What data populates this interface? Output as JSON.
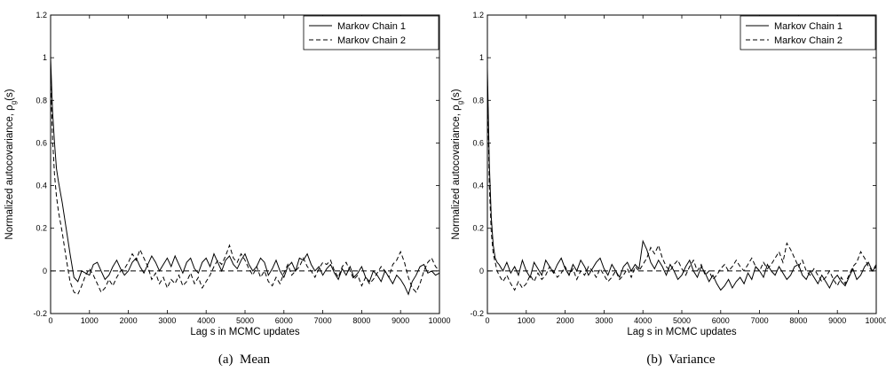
{
  "chart_data": [
    {
      "type": "line",
      "caption": "(a)  Mean",
      "xlabel": "Lag s in MCMC updates",
      "ylabel": "Normalized autocovariance, ρ",
      "ylabel_sub": "g",
      "ylabel_suffix": "(s)",
      "xlim": [
        0,
        10000
      ],
      "ylim": [
        -0.2,
        1.2
      ],
      "xticks": [
        0,
        1000,
        2000,
        3000,
        4000,
        5000,
        6000,
        7000,
        8000,
        9000,
        10000
      ],
      "yticks": [
        -0.2,
        0,
        0.2,
        0.4,
        0.6,
        0.8,
        1,
        1.2
      ],
      "xtick_labels": [
        "0",
        "1000",
        "2000",
        "3000",
        "4000",
        "5000",
        "6000",
        "7000",
        "8000",
        "9000",
        "10000"
      ],
      "ytick_labels": [
        "-0.2",
        "0",
        "0.2",
        "0.4",
        "0.6",
        "0.8",
        "1",
        "1.2"
      ],
      "legend": "top-right",
      "reference_line_y": 0,
      "series": [
        {
          "name": "Markov Chain 1",
          "style": "solid",
          "x": [
            0,
            50,
            100,
            150,
            200,
            300,
            400,
            500,
            600,
            700,
            800,
            900,
            1000,
            1100,
            1200,
            1300,
            1400,
            1500,
            1600,
            1700,
            1800,
            1900,
            2000,
            2100,
            2200,
            2300,
            2400,
            2500,
            2600,
            2700,
            2800,
            2900,
            3000,
            3100,
            3200,
            3300,
            3400,
            3500,
            3600,
            3700,
            3800,
            3900,
            4000,
            4100,
            4200,
            4300,
            4400,
            4500,
            4600,
            4700,
            4800,
            4900,
            5000,
            5100,
            5200,
            5300,
            5400,
            5500,
            5600,
            5700,
            5800,
            5900,
            6000,
            6100,
            6200,
            6300,
            6400,
            6500,
            6600,
            6700,
            6800,
            6900,
            7000,
            7100,
            7200,
            7300,
            7400,
            7500,
            7600,
            7700,
            7800,
            7900,
            8000,
            8100,
            8200,
            8300,
            8400,
            8500,
            8600,
            8700,
            8800,
            8900,
            9000,
            9100,
            9200,
            9300,
            9400,
            9500,
            9600,
            9700,
            9800,
            9900,
            10000
          ],
          "y": [
            1.0,
            0.75,
            0.6,
            0.48,
            0.42,
            0.32,
            0.2,
            0.08,
            -0.03,
            -0.05,
            0.0,
            -0.01,
            -0.02,
            0.03,
            0.04,
            0.0,
            -0.04,
            -0.02,
            0.02,
            0.05,
            0.01,
            -0.02,
            0.0,
            0.04,
            0.06,
            0.02,
            -0.01,
            0.03,
            0.07,
            0.04,
            0.0,
            0.03,
            0.06,
            0.02,
            0.07,
            0.03,
            -0.01,
            0.04,
            0.06,
            0.01,
            -0.01,
            0.04,
            0.06,
            0.02,
            0.08,
            0.04,
            0.0,
            0.05,
            0.07,
            0.03,
            0.01,
            0.05,
            0.08,
            0.03,
            0.0,
            0.02,
            0.06,
            0.04,
            -0.02,
            0.01,
            0.05,
            0.0,
            -0.03,
            0.02,
            0.04,
            0.0,
            0.06,
            0.05,
            0.08,
            0.03,
            0.0,
            0.02,
            -0.02,
            0.01,
            0.03,
            -0.01,
            -0.04,
            0.01,
            -0.02,
            0.02,
            -0.03,
            -0.01,
            0.02,
            -0.03,
            -0.05,
            0.0,
            -0.02,
            -0.05,
            0.0,
            -0.03,
            -0.06,
            -0.02,
            -0.04,
            -0.07,
            -0.11,
            -0.05,
            -0.02,
            0.02,
            0.03,
            -0.01,
            0.0,
            -0.02,
            -0.01
          ]
        },
        {
          "name": "Markov Chain 2",
          "style": "dashed",
          "x": [
            0,
            50,
            100,
            150,
            200,
            300,
            400,
            500,
            600,
            700,
            800,
            900,
            1000,
            1100,
            1200,
            1300,
            1400,
            1500,
            1600,
            1700,
            1800,
            1900,
            2000,
            2100,
            2200,
            2300,
            2400,
            2500,
            2600,
            2700,
            2800,
            2900,
            3000,
            3100,
            3200,
            3300,
            3400,
            3500,
            3600,
            3700,
            3800,
            3900,
            4000,
            4100,
            4200,
            4300,
            4400,
            4500,
            4600,
            4700,
            4800,
            4900,
            5000,
            5100,
            5200,
            5300,
            5400,
            5500,
            5600,
            5700,
            5800,
            5900,
            6000,
            6100,
            6200,
            6300,
            6400,
            6500,
            6600,
            6700,
            6800,
            6900,
            7000,
            7100,
            7200,
            7300,
            7400,
            7500,
            7600,
            7700,
            7800,
            7900,
            8000,
            8100,
            8200,
            8300,
            8400,
            8500,
            8600,
            8700,
            8800,
            8900,
            9000,
            9100,
            9200,
            9300,
            9400,
            9500,
            9600,
            9700,
            9800,
            9900,
            10000
          ],
          "y": [
            0.9,
            0.62,
            0.45,
            0.35,
            0.28,
            0.18,
            0.06,
            -0.05,
            -0.1,
            -0.11,
            -0.07,
            -0.02,
            0.01,
            -0.02,
            -0.06,
            -0.1,
            -0.08,
            -0.04,
            -0.07,
            -0.03,
            0.0,
            0.01,
            0.04,
            0.08,
            0.05,
            0.1,
            0.06,
            0.02,
            -0.04,
            -0.01,
            -0.06,
            -0.03,
            -0.08,
            -0.04,
            -0.06,
            -0.02,
            -0.07,
            -0.05,
            -0.01,
            -0.06,
            -0.03,
            -0.08,
            -0.05,
            -0.02,
            0.02,
            0.05,
            0.03,
            0.07,
            0.12,
            0.06,
            0.04,
            0.08,
            0.05,
            0.01,
            -0.02,
            0.02,
            -0.03,
            0.0,
            -0.05,
            -0.07,
            -0.03,
            -0.06,
            -0.01,
            0.03,
            -0.02,
            0.0,
            0.02,
            0.06,
            0.02,
            0.0,
            -0.03,
            0.01,
            0.04,
            0.03,
            0.05,
            0.0,
            -0.03,
            0.02,
            0.04,
            0.0,
            -0.04,
            -0.02,
            -0.07,
            -0.03,
            -0.06,
            -0.04,
            -0.01,
            0.02,
            0.0,
            -0.03,
            0.03,
            0.05,
            0.09,
            0.04,
            -0.03,
            -0.08,
            -0.1,
            -0.06,
            0.0,
            0.04,
            0.06,
            0.02,
            0.0
          ]
        }
      ]
    },
    {
      "type": "line",
      "caption": "(b)  Variance",
      "xlabel": "Lag s in MCMC updates",
      "ylabel": "Normalized autocovariance, ρ",
      "ylabel_sub": "g",
      "ylabel_suffix": "(s)",
      "xlim": [
        0,
        10000
      ],
      "ylim": [
        -0.2,
        1.2
      ],
      "xticks": [
        0,
        1000,
        2000,
        3000,
        4000,
        5000,
        6000,
        7000,
        8000,
        9000,
        10000
      ],
      "yticks": [
        -0.2,
        0,
        0.2,
        0.4,
        0.6,
        0.8,
        1,
        1.2
      ],
      "xtick_labels": [
        "0",
        "1000",
        "2000",
        "3000",
        "4000",
        "5000",
        "6000",
        "7000",
        "8000",
        "9000",
        "10000"
      ],
      "ytick_labels": [
        "-0.2",
        "0",
        "0.2",
        "0.4",
        "0.6",
        "0.8",
        "1",
        "1.2"
      ],
      "legend": "top-right",
      "reference_line_y": 0,
      "series": [
        {
          "name": "Markov Chain 1",
          "style": "solid",
          "x": [
            0,
            50,
            100,
            150,
            200,
            250,
            300,
            400,
            500,
            600,
            700,
            800,
            900,
            1000,
            1100,
            1200,
            1300,
            1400,
            1500,
            1600,
            1700,
            1800,
            1900,
            2000,
            2100,
            2200,
            2300,
            2400,
            2500,
            2600,
            2700,
            2800,
            2900,
            3000,
            3100,
            3200,
            3300,
            3400,
            3500,
            3600,
            3700,
            3800,
            3900,
            4000,
            4100,
            4200,
            4300,
            4400,
            4500,
            4600,
            4700,
            4800,
            4900,
            5000,
            5100,
            5200,
            5300,
            5400,
            5500,
            5600,
            5700,
            5800,
            5900,
            6000,
            6100,
            6200,
            6300,
            6400,
            6500,
            6600,
            6700,
            6800,
            6900,
            7000,
            7100,
            7200,
            7300,
            7400,
            7500,
            7600,
            7700,
            7800,
            7900,
            8000,
            8100,
            8200,
            8300,
            8400,
            8500,
            8600,
            8700,
            8800,
            8900,
            9000,
            9100,
            9200,
            9300,
            9400,
            9500,
            9600,
            9700,
            9800,
            9900,
            10000
          ],
          "y": [
            0.95,
            0.5,
            0.25,
            0.12,
            0.06,
            0.04,
            0.03,
            0.0,
            0.04,
            -0.01,
            0.02,
            -0.02,
            0.05,
            0.0,
            -0.03,
            0.04,
            0.01,
            -0.02,
            0.05,
            0.02,
            -0.01,
            0.03,
            0.06,
            0.01,
            -0.02,
            0.03,
            0.0,
            0.05,
            0.02,
            -0.02,
            0.01,
            0.04,
            0.06,
            0.01,
            -0.02,
            0.03,
            0.0,
            -0.03,
            0.02,
            0.04,
            0.0,
            0.03,
            0.01,
            0.14,
            0.1,
            0.04,
            0.01,
            0.05,
            0.02,
            -0.02,
            0.03,
            0.0,
            -0.04,
            -0.02,
            0.02,
            0.05,
            0.0,
            -0.03,
            0.02,
            -0.01,
            -0.05,
            -0.02,
            -0.06,
            -0.09,
            -0.07,
            -0.04,
            -0.08,
            -0.05,
            -0.03,
            -0.06,
            -0.01,
            -0.04,
            0.02,
            0.0,
            -0.03,
            0.03,
            0.0,
            -0.02,
            0.02,
            -0.01,
            -0.04,
            -0.02,
            0.02,
            0.03,
            -0.02,
            -0.04,
            0.0,
            -0.03,
            -0.06,
            -0.02,
            -0.05,
            -0.08,
            -0.04,
            -0.02,
            -0.05,
            -0.07,
            -0.03,
            0.01,
            -0.04,
            -0.02,
            0.02,
            0.04,
            0.0,
            0.02
          ]
        },
        {
          "name": "Markov Chain 2",
          "style": "dashed",
          "x": [
            0,
            50,
            100,
            150,
            200,
            250,
            300,
            400,
            500,
            600,
            700,
            800,
            900,
            1000,
            1100,
            1200,
            1300,
            1400,
            1500,
            1600,
            1700,
            1800,
            1900,
            2000,
            2100,
            2200,
            2300,
            2400,
            2500,
            2600,
            2700,
            2800,
            2900,
            3000,
            3100,
            3200,
            3300,
            3400,
            3500,
            3600,
            3700,
            3800,
            3900,
            4000,
            4100,
            4200,
            4300,
            4400,
            4500,
            4600,
            4700,
            4800,
            4900,
            5000,
            5100,
            5200,
            5300,
            5400,
            5500,
            5600,
            5700,
            5800,
            5900,
            6000,
            6100,
            6200,
            6300,
            6400,
            6500,
            6600,
            6700,
            6800,
            6900,
            7000,
            7100,
            7200,
            7300,
            7400,
            7500,
            7600,
            7700,
            7800,
            7900,
            8000,
            8100,
            8200,
            8300,
            8400,
            8500,
            8600,
            8700,
            8800,
            8900,
            9000,
            9100,
            9200,
            9300,
            9400,
            9500,
            9600,
            9700,
            9800,
            9900,
            10000
          ],
          "y": [
            0.9,
            0.4,
            0.18,
            0.08,
            0.04,
            0.0,
            -0.02,
            -0.05,
            -0.02,
            -0.06,
            -0.09,
            -0.05,
            -0.08,
            -0.06,
            -0.02,
            -0.05,
            -0.01,
            -0.04,
            -0.02,
            0.02,
            0.0,
            -0.03,
            -0.01,
            0.02,
            -0.02,
            0.01,
            -0.04,
            0.0,
            -0.02,
            0.02,
            0.0,
            -0.03,
            0.01,
            -0.02,
            -0.05,
            -0.03,
            0.0,
            -0.04,
            -0.02,
            0.01,
            -0.03,
            0.02,
            0.0,
            0.03,
            0.06,
            0.11,
            0.08,
            0.12,
            0.06,
            0.02,
            0.0,
            0.03,
            0.05,
            0.01,
            -0.02,
            0.02,
            0.05,
            0.0,
            0.03,
            -0.02,
            0.0,
            -0.04,
            -0.02,
            0.01,
            0.03,
            0.0,
            0.02,
            0.05,
            0.02,
            0.0,
            0.03,
            0.06,
            0.02,
            0.0,
            0.04,
            0.01,
            0.03,
            0.06,
            0.09,
            0.04,
            0.13,
            0.1,
            0.06,
            0.02,
            0.05,
            0.0,
            -0.02,
            0.01,
            -0.02,
            -0.05,
            -0.03,
            0.0,
            -0.04,
            -0.07,
            -0.03,
            -0.06,
            -0.02,
            0.02,
            0.04,
            0.09,
            0.06,
            0.02,
            0.0,
            0.03
          ]
        }
      ]
    }
  ]
}
